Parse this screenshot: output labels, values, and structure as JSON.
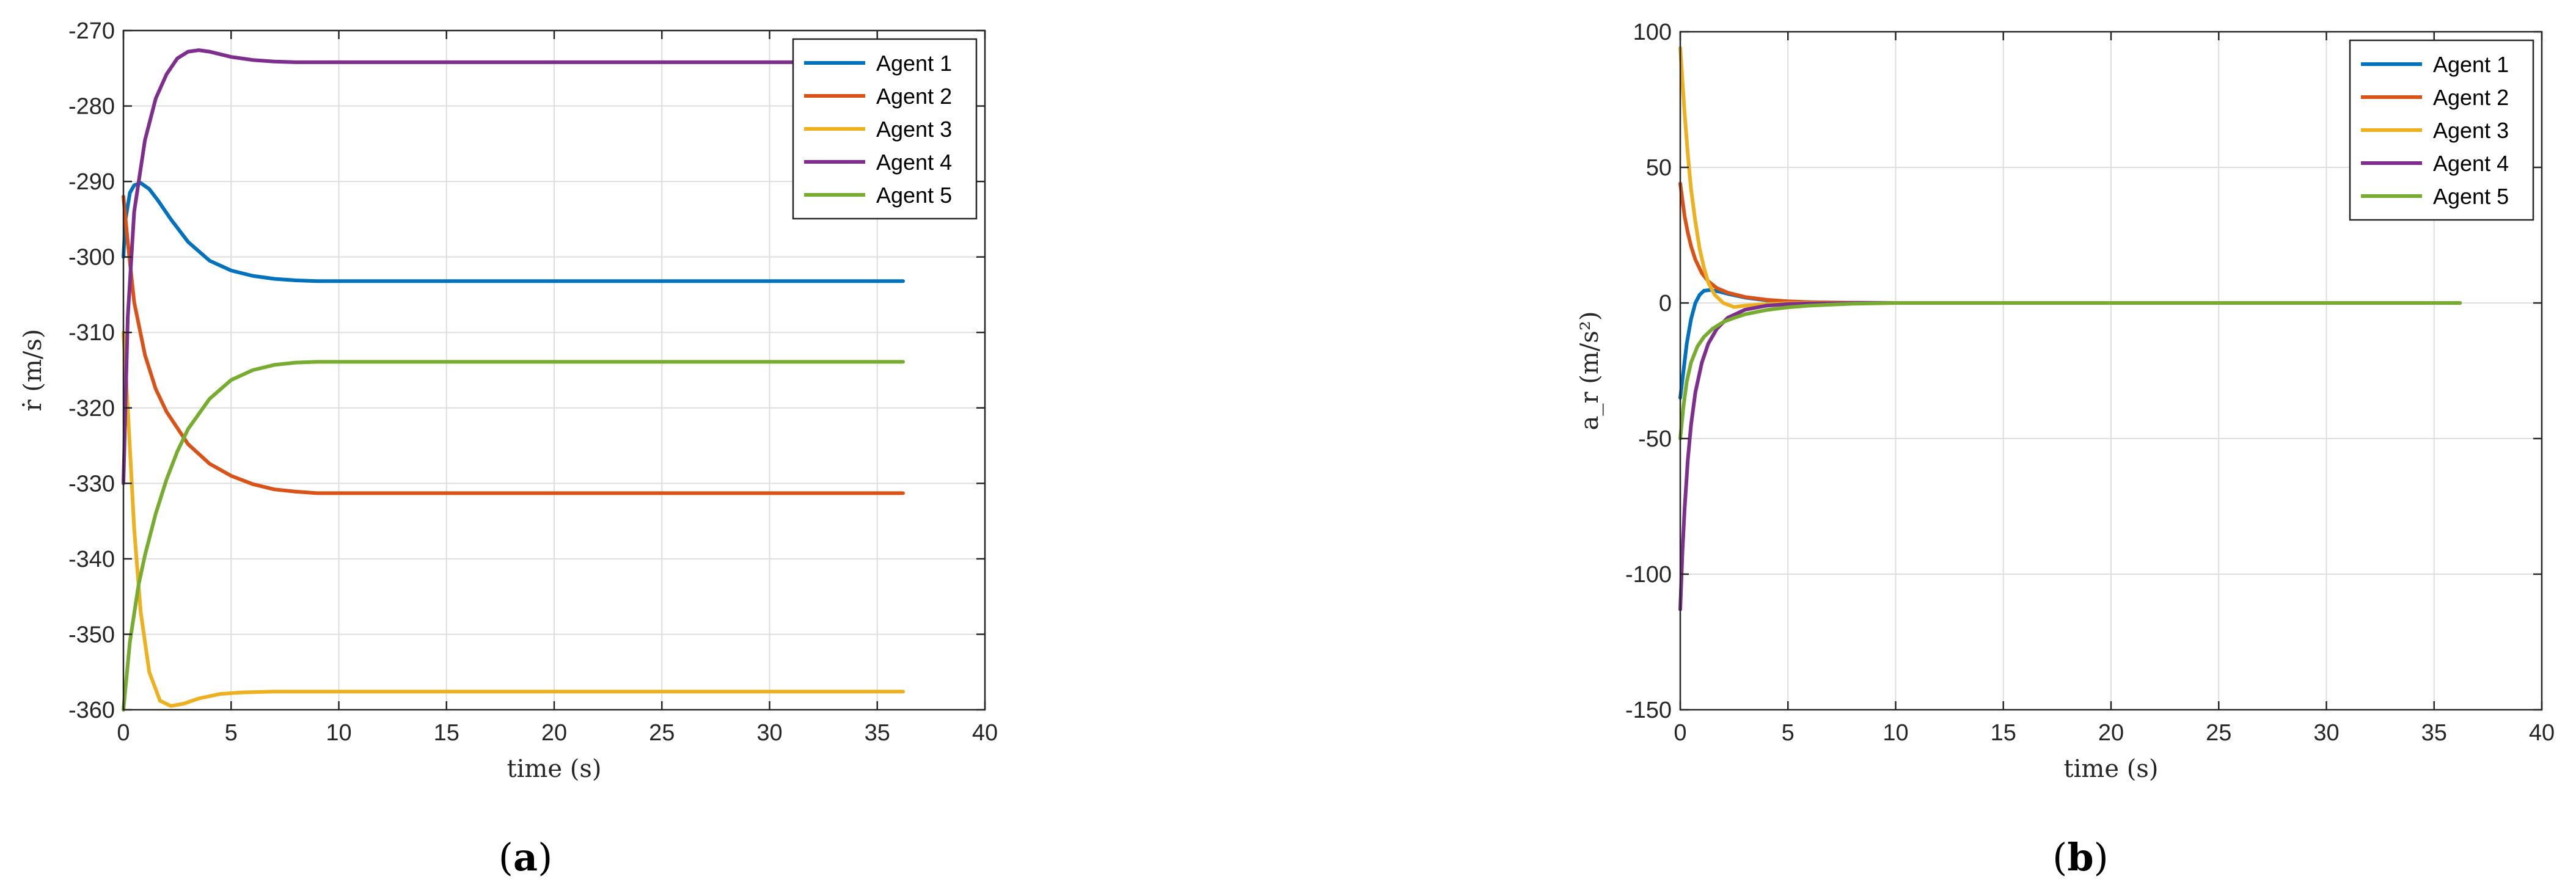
{
  "colors": {
    "agent1": "#0072BD",
    "agent2": "#D95319",
    "agent3": "#EDB120",
    "agent4": "#7E2F8E",
    "agent5": "#77AC30",
    "grid": "#dedede",
    "axis": "#262626"
  },
  "chart_data": [
    {
      "type": "line",
      "caption": {
        "open": "(",
        "letter": "a",
        "close": ")"
      },
      "xlabel": "time (s)",
      "ylabel": "ṙ (m/s)",
      "xlim": [
        0,
        40
      ],
      "ylim": [
        -360,
        -270
      ],
      "xticks": [
        0,
        5,
        10,
        15,
        20,
        25,
        30,
        35,
        40
      ],
      "yticks": [
        -360,
        -350,
        -340,
        -330,
        -320,
        -310,
        -300,
        -290,
        -280,
        -270
      ],
      "grid": true,
      "legend": "top-right",
      "series": [
        {
          "name": "Agent 1",
          "x": [
            0,
            0.1,
            0.3,
            0.5,
            0.8,
            1.2,
            1.6,
            2.2,
            3,
            4,
            5,
            6,
            7,
            8,
            9,
            10,
            20,
            30,
            36.2
          ],
          "y": [
            -300,
            -295,
            -291.5,
            -290.5,
            -290.2,
            -291,
            -292.5,
            -295,
            -298,
            -300.5,
            -301.8,
            -302.5,
            -302.9,
            -303.1,
            -303.2,
            -303.2,
            -303.2,
            -303.2,
            -303.2
          ]
        },
        {
          "name": "Agent 2",
          "x": [
            0,
            0.2,
            0.5,
            1,
            1.5,
            2,
            3,
            4,
            5,
            6,
            7,
            8,
            9,
            10,
            20,
            30,
            36.2
          ],
          "y": [
            -292,
            -298,
            -306,
            -313,
            -317.5,
            -320.5,
            -324.8,
            -327.4,
            -329,
            -330.1,
            -330.8,
            -331.1,
            -331.3,
            -331.3,
            -331.3,
            -331.3,
            -331.3
          ]
        },
        {
          "name": "Agent 3",
          "x": [
            0,
            0.2,
            0.5,
            0.8,
            1.2,
            1.7,
            2.2,
            2.8,
            3.5,
            4.5,
            5.5,
            7,
            9,
            10,
            20,
            30,
            36.2
          ],
          "y": [
            -310,
            -320,
            -336,
            -347,
            -355,
            -358.8,
            -359.5,
            -359.2,
            -358.5,
            -357.9,
            -357.7,
            -357.6,
            -357.6,
            -357.6,
            -357.6,
            -357.6,
            -357.6
          ]
        },
        {
          "name": "Agent 4",
          "x": [
            0,
            0.2,
            0.5,
            1,
            1.5,
            2,
            2.5,
            3,
            3.5,
            4,
            5,
            6,
            7,
            8,
            9,
            10,
            20,
            30,
            36.2
          ],
          "y": [
            -330,
            -308,
            -294,
            -284.5,
            -279,
            -275.8,
            -273.7,
            -272.8,
            -272.6,
            -272.8,
            -273.5,
            -273.9,
            -274.1,
            -274.2,
            -274.2,
            -274.2,
            -274.2,
            -274.2,
            -274.2
          ]
        },
        {
          "name": "Agent 5",
          "x": [
            0,
            0.3,
            0.7,
            1,
            1.5,
            2,
            2.5,
            3,
            4,
            5,
            6,
            7,
            8,
            9,
            10,
            20,
            30,
            36.2
          ],
          "y": [
            -360,
            -351,
            -343.5,
            -339.5,
            -334,
            -329.5,
            -325.8,
            -322.8,
            -318.8,
            -316.3,
            -315,
            -314.3,
            -314,
            -313.9,
            -313.9,
            -313.9,
            -313.9,
            -313.9
          ]
        }
      ]
    },
    {
      "type": "line",
      "caption": {
        "open": "(",
        "letter": "b",
        "close": ")"
      },
      "xlabel": "time (s)",
      "ylabel": "a_r (m/s²)",
      "xlim": [
        0,
        40
      ],
      "ylim": [
        -150,
        100
      ],
      "xticks": [
        0,
        5,
        10,
        15,
        20,
        25,
        30,
        35,
        40
      ],
      "yticks": [
        -150,
        -100,
        -50,
        0,
        50,
        100
      ],
      "grid": true,
      "legend": "top-right",
      "series": [
        {
          "name": "Agent 1",
          "x": [
            0,
            0.15,
            0.3,
            0.5,
            0.7,
            0.9,
            1.1,
            1.4,
            1.8,
            2.3,
            3,
            4,
            5,
            7,
            10,
            20,
            30,
            36.2
          ],
          "y": [
            -35,
            -25,
            -15,
            -6,
            0,
            3,
            4.5,
            4.8,
            4.2,
            3.2,
            2,
            1,
            0.5,
            0.1,
            0,
            0,
            0,
            0
          ]
        },
        {
          "name": "Agent 2",
          "x": [
            0,
            0.1,
            0.2,
            0.35,
            0.5,
            0.7,
            1,
            1.3,
            1.7,
            2.2,
            3,
            4,
            5,
            6,
            8,
            10,
            20,
            30,
            36.2
          ],
          "y": [
            44,
            38,
            32,
            26,
            21,
            16,
            11,
            8,
            5.5,
            3.8,
            2.2,
            1.2,
            0.6,
            0.3,
            0.1,
            0,
            0,
            0,
            0
          ]
        },
        {
          "name": "Agent 3",
          "x": [
            0,
            0.1,
            0.2,
            0.35,
            0.5,
            0.7,
            0.9,
            1.1,
            1.3,
            1.6,
            2,
            2.5,
            3,
            4,
            5,
            7,
            10,
            20,
            30,
            36.2
          ],
          "y": [
            94,
            82,
            70,
            55,
            42,
            30,
            20,
            13,
            7.5,
            3,
            0,
            -1.5,
            -1,
            -0.4,
            -0.1,
            0,
            0,
            0,
            0,
            0
          ]
        },
        {
          "name": "Agent 4",
          "x": [
            0,
            0.1,
            0.2,
            0.35,
            0.5,
            0.7,
            1,
            1.3,
            1.7,
            2.2,
            3,
            4,
            5,
            6,
            8,
            10,
            20,
            30,
            36.2
          ],
          "y": [
            -113,
            -92,
            -76,
            -58,
            -45,
            -33,
            -22,
            -15,
            -9.5,
            -5.5,
            -2.5,
            -1,
            -0.4,
            -0.2,
            0,
            0,
            0,
            0,
            0
          ]
        },
        {
          "name": "Agent 5",
          "x": [
            0,
            0.15,
            0.3,
            0.5,
            0.8,
            1.1,
            1.5,
            2,
            2.5,
            3,
            4,
            5,
            6,
            7,
            8,
            10,
            20,
            30,
            36.2
          ],
          "y": [
            -50,
            -38,
            -29,
            -22,
            -16,
            -12.5,
            -9.5,
            -7,
            -5.5,
            -4.2,
            -2.6,
            -1.6,
            -1,
            -0.6,
            -0.3,
            0,
            0,
            0,
            0
          ]
        }
      ]
    }
  ]
}
